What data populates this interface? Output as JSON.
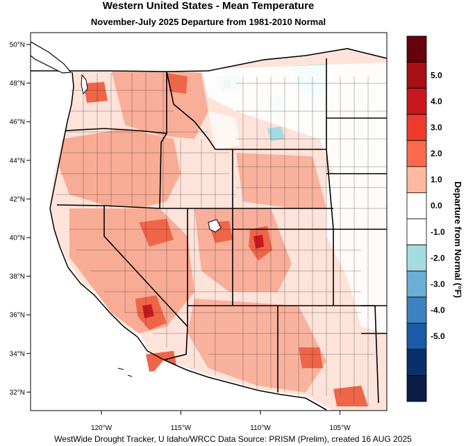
{
  "title": "Western United States - Mean Temperature",
  "subtitle": "November-July 2025  Departure from 1981-2010 Normal",
  "footer": "WestWide Drought Tracker, U Idaho/WRCC Data Source: PRISM (Prelim), created 16 AUG 2025",
  "lat_ticks": [
    {
      "label": "50°N",
      "lat": 50
    },
    {
      "label": "48°N",
      "lat": 48
    },
    {
      "label": "46°N",
      "lat": 46
    },
    {
      "label": "44°N",
      "lat": 44
    },
    {
      "label": "42°N",
      "lat": 42
    },
    {
      "label": "40°N",
      "lat": 40
    },
    {
      "label": "38°N",
      "lat": 38
    },
    {
      "label": "36°N",
      "lat": 36
    },
    {
      "label": "34°N",
      "lat": 34
    },
    {
      "label": "32°N",
      "lat": 32
    }
  ],
  "lon_ticks": [
    {
      "label": "120°W",
      "lon": -120
    },
    {
      "label": "115°W",
      "lon": -115
    },
    {
      "label": "110°W",
      "lon": -110
    },
    {
      "label": "105°W",
      "lon": -105
    }
  ],
  "colorbar": {
    "title": "Departure from Normal (°F)",
    "bins": [
      {
        "color": "#67000d"
      },
      {
        "color": "#a50f15"
      },
      {
        "color": "#cb181d"
      },
      {
        "color": "#ef3b2c"
      },
      {
        "color": "#fb6a4a"
      },
      {
        "color": "#fcbba1"
      },
      {
        "color": "#ffffff"
      },
      {
        "color": "#ffffff"
      },
      {
        "color": "#a6dbe2"
      },
      {
        "color": "#6baed6"
      },
      {
        "color": "#3c82c0"
      },
      {
        "color": "#1a5ca5"
      },
      {
        "color": "#08306b"
      },
      {
        "color": "#0b1d47"
      }
    ],
    "labels": [
      "5.0",
      "4.0",
      "3.0",
      "2.0",
      "1.0",
      "0.0",
      "-1.0",
      "-2.0",
      "-3.0",
      "-4.0",
      "-5.0"
    ]
  }
}
